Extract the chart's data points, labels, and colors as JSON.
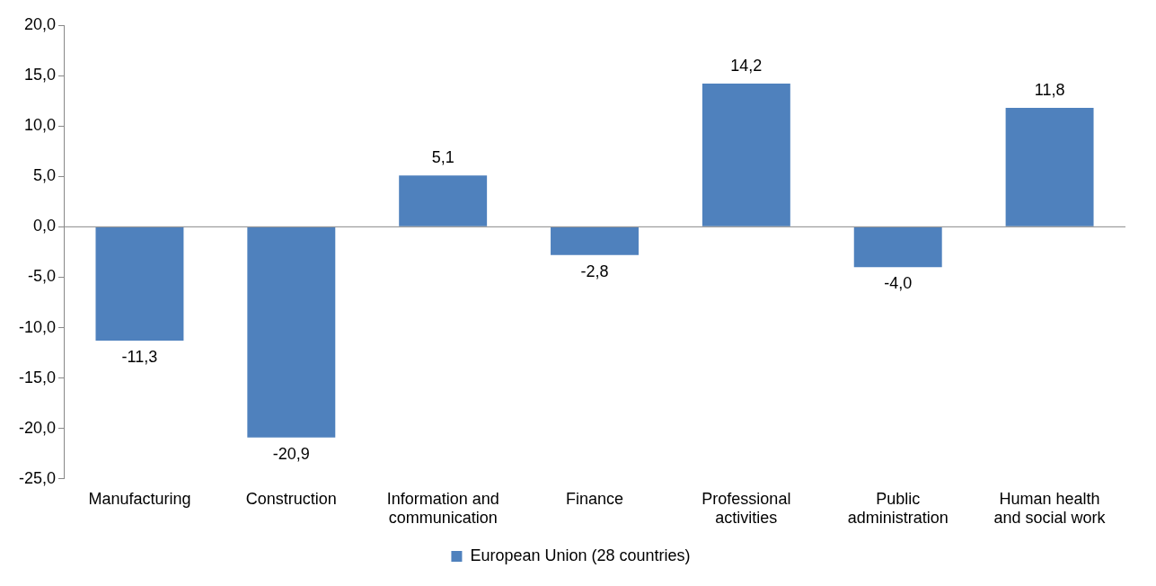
{
  "chart_data": {
    "type": "bar",
    "categories": [
      "Manufacturing",
      "Construction",
      "Information and communication",
      "Finance",
      "Professional activities",
      "Public administration",
      "Human health and social work"
    ],
    "series": [
      {
        "name": "European Union (28 countries)",
        "color": "#4f81bd",
        "values": [
          -11.3,
          -20.9,
          5.1,
          -2.8,
          14.2,
          -4.0,
          11.8
        ],
        "value_labels": [
          "-11,3",
          "-20,9",
          "5,1",
          "-2,8",
          "14,2",
          "-4,0",
          "11,8"
        ]
      }
    ],
    "ylim": [
      -25,
      20
    ],
    "yticks": [
      {
        "value": 20,
        "label": "20,0"
      },
      {
        "value": 15,
        "label": "15,0"
      },
      {
        "value": 10,
        "label": "10,0"
      },
      {
        "value": 5,
        "label": "5,0"
      },
      {
        "value": 0,
        "label": "0,0"
      },
      {
        "value": -5,
        "label": "-5,0"
      },
      {
        "value": -10,
        "label": "-10,0"
      },
      {
        "value": -15,
        "label": "-15,0"
      },
      {
        "value": -20,
        "label": "-20,0"
      },
      {
        "value": -25,
        "label": "-25,0"
      }
    ],
    "grid": false,
    "ref_lines": [
      {
        "axis": "y",
        "value": 0,
        "color": "#888888"
      }
    ],
    "legend": "bottom"
  }
}
